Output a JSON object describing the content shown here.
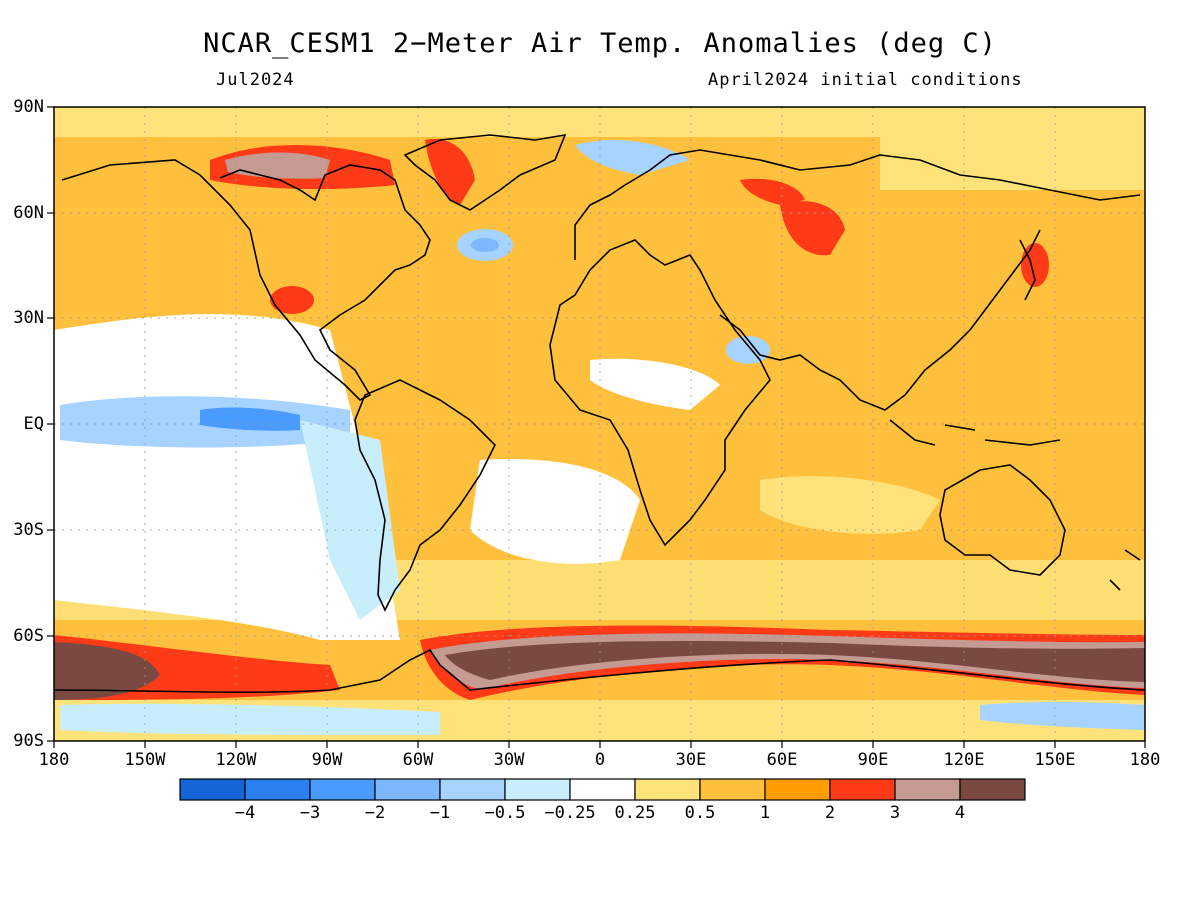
{
  "title": "NCAR_CESM1 2−Meter Air Temp. Anomalies (deg C)",
  "subtitle_left": "Jul2024",
  "subtitle_right": "April2024 initial conditions",
  "lat_labels": [
    "90N",
    "60N",
    "30N",
    "EQ",
    "30S",
    "60S",
    "90S"
  ],
  "lon_labels": [
    "180",
    "150W",
    "120W",
    "90W",
    "60W",
    "30W",
    "0",
    "30E",
    "60E",
    "90E",
    "120E",
    "150E",
    "180"
  ],
  "colorbar": {
    "colors": [
      "#1565d8",
      "#2b7ff0",
      "#4a9bff",
      "#7db8ff",
      "#a6d3ff",
      "#c7eefa",
      "#ffffff",
      "#ffe27a",
      "#ffc13d",
      "#ff9d00",
      "#ff3a17",
      "#c49a92",
      "#7a4a42"
    ],
    "labels": [
      "−4",
      "−3",
      "−2",
      "−1",
      "−0.5",
      "−0.25",
      "0.25",
      "0.5",
      "1",
      "2",
      "3",
      "4"
    ]
  }
}
